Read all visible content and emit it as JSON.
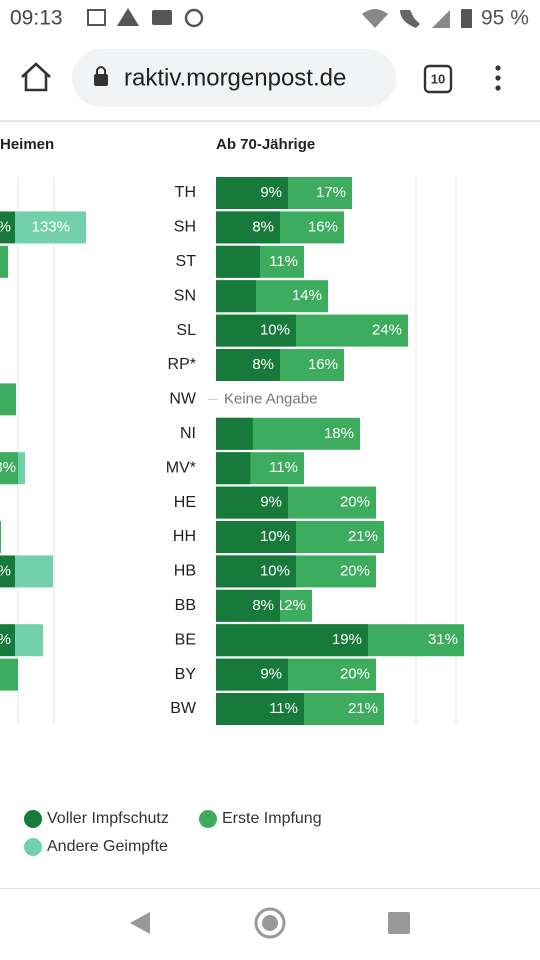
{
  "status_bar": {
    "time": "09:13",
    "battery": "95 %"
  },
  "browser": {
    "url": "raktiv.morgenpost.de",
    "tabs": "10"
  },
  "left_panel": {
    "title": "Heimen",
    "series_name": "Andere Geimpfte",
    "color": "#72d1ac",
    "labels": [
      "%",
      "133%",
      "3%",
      "%",
      "%"
    ]
  },
  "chart_data": {
    "type": "bar",
    "orientation": "horizontal",
    "overlap": true,
    "title": "Ab 70-Jährige",
    "categories": [
      "TH",
      "SH",
      "ST",
      "SN",
      "SL",
      "RP*",
      "NW",
      "NI",
      "MV*",
      "HE",
      "HH",
      "HB",
      "BB",
      "BE",
      "BY",
      "BW"
    ],
    "series": [
      {
        "name": "Voller Impfschutz",
        "color": "#177a3a",
        "values": [
          9,
          8,
          5.5,
          5,
          10,
          8,
          null,
          4.6,
          4.3,
          9,
          10,
          10,
          8,
          19,
          9,
          11
        ],
        "value_labels": [
          "9%",
          "8%",
          null,
          null,
          "10%",
          "8%",
          null,
          null,
          null,
          "9%",
          "10%",
          "10%",
          "8%",
          "19%",
          "9%",
          "11%"
        ]
      },
      {
        "name": "Erste Impfung",
        "color": "#3dac5f",
        "values": [
          17,
          16,
          11,
          14,
          24,
          16,
          null,
          18,
          11,
          20,
          21,
          20,
          12,
          31,
          20,
          21
        ],
        "value_labels": [
          "17%",
          "16%",
          "11%",
          "14%",
          "24%",
          "16%",
          null,
          "18%",
          "11%",
          "20%",
          "21%",
          "20%",
          "12%",
          "31%",
          "20%",
          "21%"
        ]
      }
    ],
    "na_label": "Keine Angabe",
    "xlim": [
      0,
      31
    ],
    "gridlines": [
      25,
      30
    ]
  }
}
